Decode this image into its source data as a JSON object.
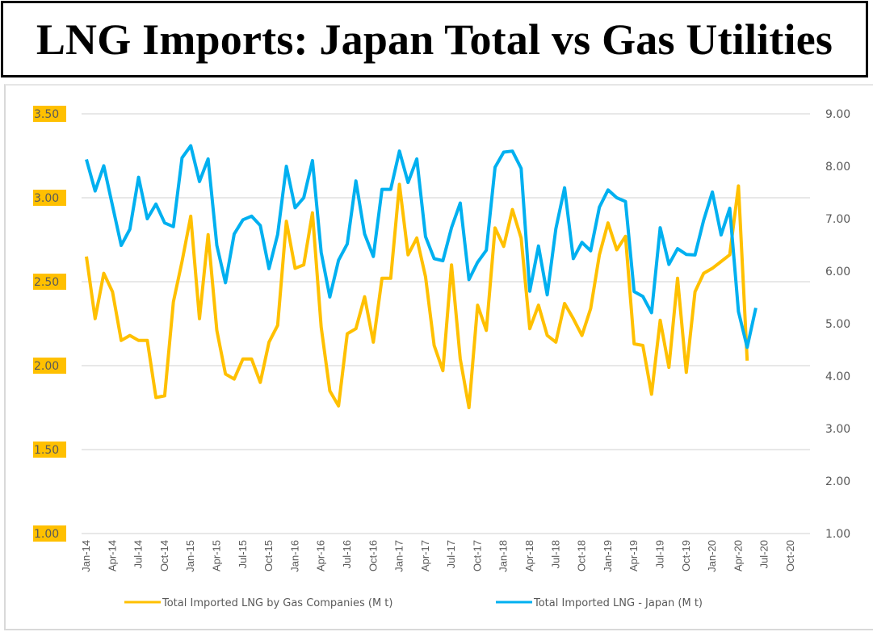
{
  "title": "LNG Imports: Japan Total vs Gas Utilities",
  "colors": {
    "gas_companies": "#FFC000",
    "japan": "#00B0F0",
    "label_highlight": "#FFC000",
    "grid": "#d9d9d9",
    "text": "#595959"
  },
  "chart_data": {
    "type": "line",
    "title": "LNG Imports: Japan Total vs Gas Utilities",
    "xlabel": "",
    "ylabel_left": "",
    "ylabel_right": "",
    "ylim_left": [
      1.0,
      3.5
    ],
    "ylim_right": [
      1.0,
      9.0
    ],
    "yticks_left": [
      "1.00",
      "1.50",
      "2.00",
      "2.50",
      "3.00",
      "3.50"
    ],
    "yticks_right": [
      "1.00",
      "2.00",
      "3.00",
      "4.00",
      "5.00",
      "6.00",
      "7.00",
      "8.00",
      "9.00"
    ],
    "xticks": [
      "Jan-14",
      "Apr-14",
      "Jul-14",
      "Oct-14",
      "Jan-15",
      "Apr-15",
      "Jul-15",
      "Oct-15",
      "Jan-16",
      "Apr-16",
      "Jul-16",
      "Oct-16",
      "Jan-17",
      "Apr-17",
      "Jul-17",
      "Oct-17",
      "Jan-18",
      "Apr-18",
      "Jul-18",
      "Oct-18",
      "Jan-19",
      "Apr-19",
      "Jul-19",
      "Oct-19",
      "Jan-20",
      "Apr-20",
      "Jul-20",
      "Oct-20"
    ],
    "x_start": "Jan-14",
    "x_months_total": 82,
    "grid": true,
    "legend_position": "bottom",
    "series": [
      {
        "name": "Total Imported LNG by Gas Companies (M t)",
        "axis": "left",
        "color": "#FFC000",
        "values": [
          2.65,
          2.28,
          2.55,
          2.44,
          2.15,
          2.18,
          2.15,
          2.15,
          1.81,
          1.82,
          2.38,
          2.62,
          2.89,
          2.28,
          2.78,
          2.21,
          1.95,
          1.92,
          2.04,
          2.04,
          1.9,
          2.14,
          2.24,
          2.86,
          2.58,
          2.6,
          2.91,
          2.23,
          1.85,
          1.76,
          2.19,
          2.22,
          2.41,
          2.14,
          2.52,
          2.52,
          3.08,
          2.66,
          2.76,
          2.53,
          2.12,
          1.97,
          2.6,
          2.04,
          1.75,
          2.36,
          2.21,
          2.82,
          2.71,
          2.93,
          2.76,
          2.22,
          2.36,
          2.18,
          2.14,
          2.37,
          2.28,
          2.18,
          2.34,
          2.66,
          2.85,
          2.69,
          2.77,
          2.13,
          2.12,
          1.83,
          2.27,
          1.99,
          2.52,
          1.96,
          2.44,
          2.55,
          2.58,
          2.62,
          2.66,
          3.07,
          2.03
        ]
      },
      {
        "name": "Total Imported LNG - Japan (M t)",
        "axis": "right",
        "color": "#00B0F0",
        "values": [
          8.13,
          7.53,
          8.01,
          7.25,
          6.49,
          6.8,
          7.79,
          7.0,
          7.28,
          6.92,
          6.85,
          8.16,
          8.39,
          7.71,
          8.14,
          6.49,
          5.78,
          6.71,
          6.98,
          7.05,
          6.87,
          6.05,
          6.7,
          8.0,
          7.21,
          7.4,
          8.11,
          6.36,
          5.51,
          6.21,
          6.52,
          7.72,
          6.71,
          6.28,
          7.56,
          7.56,
          8.29,
          7.69,
          8.14,
          6.66,
          6.24,
          6.2,
          6.83,
          7.3,
          5.84,
          6.17,
          6.4,
          7.98,
          8.27,
          8.29,
          7.96,
          5.62,
          6.48,
          5.55,
          6.81,
          7.59,
          6.24,
          6.55,
          6.39,
          7.22,
          7.55,
          7.4,
          7.33,
          5.61,
          5.52,
          5.21,
          6.83,
          6.13,
          6.43,
          6.32,
          6.31,
          6.97,
          7.51,
          6.69,
          7.2,
          5.23,
          4.55,
          5.3
        ]
      }
    ]
  }
}
